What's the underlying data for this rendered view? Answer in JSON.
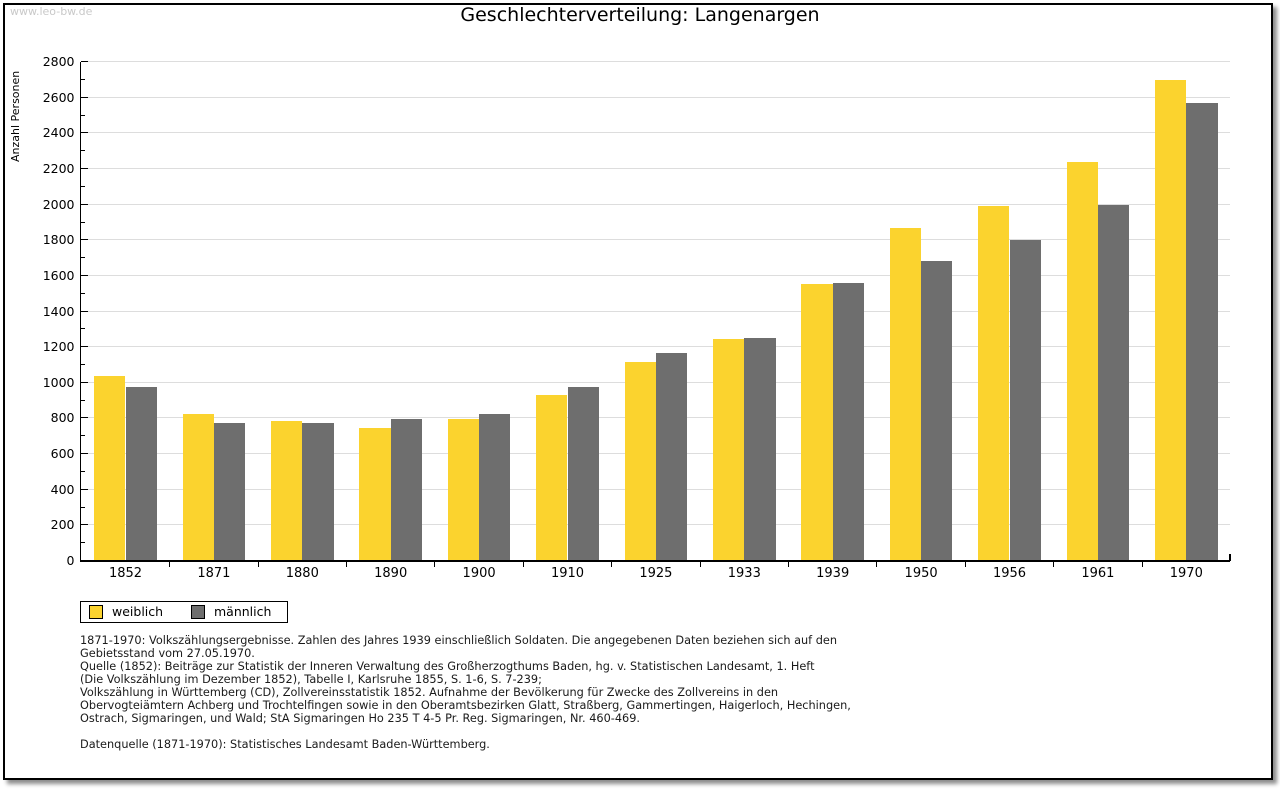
{
  "watermark": "www.leo-bw.de",
  "title": "Geschlechterverteilung: Langenargen",
  "chart_data": {
    "type": "bar",
    "title": "Geschlechterverteilung: Langenargen",
    "ylabel": "Anzahl Personen",
    "xlabel": "",
    "categories": [
      "1852",
      "1871",
      "1880",
      "1890",
      "1900",
      "1910",
      "1925",
      "1933",
      "1939",
      "1950",
      "1956",
      "1961",
      "1970"
    ],
    "series": [
      {
        "name": "weiblich",
        "color": "#FBD32E",
        "values": [
          1035,
          825,
          785,
          745,
          795,
          930,
          1115,
          1245,
          1550,
          1865,
          1990,
          2235,
          2700
        ]
      },
      {
        "name": "männlich",
        "color": "#6E6E6E",
        "values": [
          975,
          770,
          770,
          795,
          825,
          975,
          1165,
          1250,
          1560,
          1680,
          1800,
          1995,
          2570
        ]
      }
    ],
    "ylim": [
      0,
      2800
    ],
    "ytick_step": 200,
    "yminor_step": 100,
    "grid": true,
    "legend_position": "bottom-left"
  },
  "footnotes": {
    "lines": [
      "1871-1970: Volkszählungsergebnisse. Zahlen des Jahres 1939 einschließlich Soldaten. Die angegebenen Daten beziehen sich auf den",
      "Gebietsstand vom 27.05.1970.",
      "Quelle (1852): Beiträge zur Statistik der Inneren Verwaltung des Großherzogthums Baden, hg. v. Statistischen Landesamt, 1. Heft",
      "(Die Volkszählung im Dezember 1852), Tabelle I, Karlsruhe 1855, S. 1-6, S. 7-239;",
      "Volkszählung in Württemberg (CD), Zollvereinsstatistik 1852. Aufnahme der Bevölkerung für Zwecke des Zollvereins in den",
      "Obervogteiämtern Achberg und Trochtelfingen sowie in den Oberamtsbezirken Glatt, Straßberg, Gammertingen, Haigerloch, Hechingen,",
      "Ostrach, Sigmaringen, und Wald; StA Sigmaringen Ho 235 T 4-5 Pr. Reg. Sigmaringen, Nr. 460-469.",
      "",
      "Datenquelle (1871-1970): Statistisches Landesamt Baden-Württemberg."
    ]
  }
}
